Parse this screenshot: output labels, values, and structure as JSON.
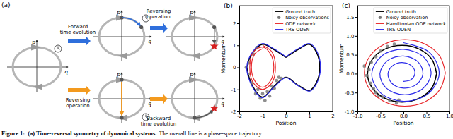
{
  "diagram": {
    "panel_label": "(a)",
    "axis_labels": {
      "p": "p",
      "q": "q"
    },
    "arrows": [
      {
        "label": [
          "Forward",
          "time evolution"
        ],
        "color": "#2f6fdc"
      },
      {
        "label": [
          "Reversing",
          "operation"
        ],
        "color": "#2f6fdc"
      },
      {
        "label": [
          "Reversing",
          "operation"
        ],
        "color": "#f39a1e"
      },
      {
        "label": [
          "Backward",
          "time evolution"
        ],
        "color": "#f39a1e"
      }
    ]
  },
  "caption": {
    "label": "Figure 1:",
    "title": "(a) Time-reversal symmetry of dynamical systems.",
    "text": "The overall line is a phase-space trajectory"
  },
  "chart_data": [
    {
      "type": "line",
      "title": "(b)",
      "xlabel": "Position",
      "ylabel": "Momentum",
      "xlim": [
        -2,
        2
      ],
      "ylim": [
        -2,
        2.8
      ],
      "xticks": [
        -2,
        -1,
        0,
        1,
        2
      ],
      "yticks": [
        -2,
        -1,
        0,
        1,
        2
      ],
      "grid": false,
      "legend": "upper right",
      "series": [
        {
          "name": "Ground truth",
          "type": "line",
          "color": "#000000",
          "x": [
            0,
            0.5,
            1.0,
            1.3,
            1.45,
            1.3,
            1.0,
            0.5,
            0,
            -0.5,
            -1.0,
            -1.4,
            -1.65,
            -1.4,
            -1.0,
            -0.5,
            0
          ],
          "values": [
            0.45,
            0.8,
            1.05,
            0.7,
            0,
            -0.7,
            -1.05,
            -0.8,
            -0.45,
            -0.85,
            -1.35,
            -0.9,
            0,
            0.7,
            1.05,
            0.8,
            0.45
          ]
        },
        {
          "name": "Noisy observations",
          "type": "scatter",
          "marker": "circle",
          "color": "#7a7a7a",
          "x": [
            -1.55,
            -1.6,
            -1.4,
            -1.2,
            -1.0,
            -0.8,
            -0.6,
            -0.4,
            -0.2,
            -1.45,
            -1.1,
            -0.9,
            -1.3,
            -0.5,
            -0.3,
            -1.7,
            -1.25,
            -0.7
          ],
          "values": [
            -0.3,
            0.2,
            0.6,
            -1.0,
            -1.2,
            -1.1,
            -0.85,
            -0.6,
            -0.5,
            -0.7,
            -1.4,
            -1.5,
            -1.2,
            -0.95,
            -0.45,
            0.0,
            0.9,
            -1.3
          ]
        },
        {
          "name": "ODE network",
          "type": "line",
          "color": "#e8262a",
          "x": [
            -1,
            -0.6,
            -0.45,
            -0.6,
            -1,
            -1.4,
            -1.55,
            -1.4,
            -1,
            -0.67,
            -0.52,
            -0.67,
            -1,
            -1.33,
            -1.48,
            -1.33,
            -1
          ],
          "values": [
            1.0,
            0.7,
            0,
            -0.7,
            -1.0,
            -0.7,
            0,
            0.7,
            0.92,
            0.62,
            0,
            -0.62,
            -0.9,
            -0.62,
            0,
            0.62,
            0.85
          ]
        },
        {
          "name": "TRS-ODEN",
          "type": "line",
          "color": "#2b2bea",
          "x": [
            0,
            0.5,
            1.02,
            1.33,
            1.48,
            1.32,
            1.02,
            0.5,
            0,
            -0.5,
            -1.02,
            -1.42,
            -1.68,
            -1.42,
            -1.02,
            -0.5,
            0
          ],
          "values": [
            0.48,
            0.83,
            1.08,
            0.72,
            0,
            -0.72,
            -1.08,
            -0.82,
            -0.47,
            -0.88,
            -1.38,
            -0.92,
            0,
            0.72,
            1.08,
            0.83,
            0.48
          ]
        }
      ]
    },
    {
      "type": "line",
      "title": "(c)",
      "xlabel": "Position",
      "ylabel": "Momentum",
      "xlim": [
        -1.0,
        1.0
      ],
      "ylim": [
        -1.0,
        1.8
      ],
      "xticks": [
        {
          "value": -1.0,
          "label": "-1.0"
        },
        {
          "value": -0.5,
          "label": "-0.5"
        },
        {
          "value": 0,
          "label": "0.0"
        },
        {
          "value": 0.5,
          "label": "0.5"
        },
        {
          "value": 1.0,
          "label": "1.0"
        }
      ],
      "yticks": [
        {
          "value": -1.0,
          "label": "-1.0"
        },
        {
          "value": -0.5,
          "label": "-0.5"
        },
        {
          "value": 0,
          "label": "0.0"
        },
        {
          "value": 0.5,
          "label": "0.5"
        },
        {
          "value": 1.0,
          "label": "1.0"
        },
        {
          "value": 1.5,
          "label": "1.5"
        }
      ],
      "grid": false,
      "legend": "upper right",
      "series": [
        {
          "name": "Ground truth",
          "type": "line",
          "color": "#000000",
          "x": [
            0.72,
            0.62,
            0.345,
            -0.03,
            -0.405,
            -0.68,
            -0.78,
            -0.68,
            -0.405,
            -0.03,
            0.345,
            0.62,
            0.72
          ],
          "values": [
            0,
            0.375,
            0.65,
            0.75,
            0.65,
            0.375,
            0,
            -0.375,
            -0.65,
            -0.75,
            -0.65,
            -0.375,
            0
          ]
        },
        {
          "name": "Noisy observation",
          "type": "scatter",
          "marker": "circle",
          "color": "#7a7a7a",
          "x": [
            -0.6,
            -0.7,
            -0.75,
            -0.8,
            -0.72,
            -0.6,
            -0.45,
            -0.3,
            -0.15,
            -0.5,
            -0.35,
            -0.2,
            -0.65,
            -0.85,
            -0.55,
            -0.1
          ],
          "values": [
            0.45,
            0.3,
            0.1,
            -0.05,
            -0.25,
            -0.5,
            -0.62,
            -0.7,
            -0.78,
            0.6,
            0.72,
            0.78,
            -0.4,
            0.2,
            -0.6,
            -0.7
          ]
        },
        {
          "name": "Hamiltonian ODE network",
          "type": "line",
          "color": "#e8262a",
          "x": [
            0.91,
            0.792,
            0.47,
            0.03,
            -0.41,
            -0.732,
            -0.85,
            -0.732,
            -0.41,
            0.03,
            0.47,
            0.792,
            0.91
          ],
          "values": [
            0.02,
            0.46,
            0.782,
            0.9,
            0.782,
            0.46,
            0.02,
            -0.42,
            -0.742,
            -0.86,
            -0.742,
            -0.42,
            0.02
          ]
        },
        {
          "name": "TRS-ODEN",
          "type": "line",
          "color": "#2b2bea",
          "x": [
            0,
            0.564,
            0.776,
            0.533,
            0,
            -0.502,
            -0.688,
            -0.471,
            0,
            0.44,
            0.6,
            0.409,
            0,
            -0.378,
            -0.512,
            -0.346,
            0,
            0.315,
            0.424,
            0.284,
            0,
            -0.253,
            -0.336,
            -0.222,
            0,
            0.191,
            0.248,
            0.16,
            0
          ],
          "values": [
            0.82,
            0.564,
            0,
            -0.533,
            -0.732,
            -0.502,
            0,
            0.471,
            0.644,
            0.44,
            0,
            -0.409,
            -0.556,
            -0.378,
            0,
            0.346,
            0.468,
            0.315,
            0,
            -0.284,
            -0.38,
            -0.253,
            0,
            0.222,
            0.292,
            0.191,
            0,
            -0.16,
            -0.204
          ]
        }
      ]
    }
  ]
}
